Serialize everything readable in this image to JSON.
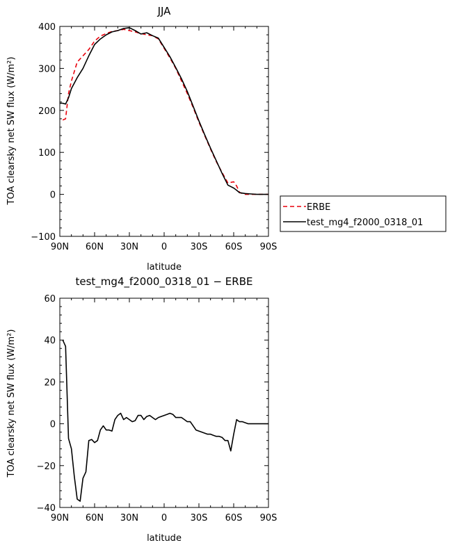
{
  "chart_data": [
    {
      "type": "line",
      "title": "JJA",
      "xlabel": "latitude",
      "ylabel": "TOA clearsky net SW flux (W/m²)",
      "xticks": [
        {
          "value": -90,
          "label": "90N"
        },
        {
          "value": -60,
          "label": "60N"
        },
        {
          "value": -30,
          "label": "30N"
        },
        {
          "value": 0,
          "label": "0"
        },
        {
          "value": 30,
          "label": "30S"
        },
        {
          "value": 60,
          "label": "60S"
        },
        {
          "value": 90,
          "label": "90S"
        }
      ],
      "yticks": [
        -100,
        0,
        100,
        200,
        300,
        400
      ],
      "ylim": [
        -100,
        400
      ],
      "legend": "right",
      "series": [
        {
          "name": "ERBE",
          "color": "#e8000b",
          "dash": "dashed",
          "x": [
            -87.5,
            -85,
            -82.5,
            -80,
            -75,
            -70,
            -65,
            -60,
            -55,
            -50,
            -45,
            -40,
            -35,
            -30,
            -25,
            -20,
            -15,
            -10,
            -5,
            0,
            5,
            10,
            15,
            20,
            25,
            30,
            35,
            40,
            45,
            50,
            55,
            60,
            62.5,
            65,
            67.5,
            70,
            75,
            80,
            85,
            90
          ],
          "y": [
            177,
            180,
            240,
            270,
            315,
            330,
            345,
            365,
            377,
            383,
            388,
            390,
            393,
            390,
            387,
            383,
            380,
            378,
            370,
            348,
            325,
            300,
            270,
            240,
            207,
            172,
            140,
            108,
            78,
            52,
            27,
            30,
            20,
            5,
            2,
            0,
            0,
            0,
            0,
            0
          ]
        },
        {
          "name": "test_mg4_f2000_0318_01",
          "color": "#000000",
          "dash": "solid",
          "x": [
            -90,
            -87.5,
            -85,
            -82.5,
            -80,
            -75,
            -70,
            -65,
            -60,
            -55,
            -50,
            -45,
            -40,
            -35,
            -30,
            -25,
            -20,
            -15,
            -10,
            -5,
            0,
            5,
            10,
            15,
            20,
            25,
            30,
            35,
            40,
            45,
            50,
            55,
            60,
            62.5,
            65,
            67.5,
            70,
            75,
            80,
            85,
            90
          ],
          "y": [
            217,
            217,
            215,
            230,
            252,
            278,
            300,
            330,
            357,
            370,
            380,
            387,
            390,
            395,
            397,
            390,
            382,
            385,
            378,
            372,
            350,
            328,
            302,
            275,
            245,
            210,
            175,
            142,
            110,
            80,
            50,
            22,
            15,
            10,
            4,
            3,
            2,
            1,
            0,
            0,
            0
          ]
        }
      ]
    },
    {
      "type": "line",
      "title": "test_mg4_f2000_0318_01 − ERBE",
      "xlabel": "latitude",
      "ylabel": "TOA clearsky net SW flux (W/m²)",
      "xticks": [
        {
          "value": -90,
          "label": "90N"
        },
        {
          "value": -60,
          "label": "60N"
        },
        {
          "value": -30,
          "label": "30N"
        },
        {
          "value": 0,
          "label": "0"
        },
        {
          "value": 30,
          "label": "30S"
        },
        {
          "value": 60,
          "label": "60S"
        },
        {
          "value": 90,
          "label": "90S"
        }
      ],
      "yticks": [
        -40,
        -20,
        0,
        20,
        40,
        60
      ],
      "ylim": [
        -40,
        60
      ],
      "series": [
        {
          "color": "#000000",
          "dash": "solid",
          "x": [
            -87.5,
            -85,
            -82.5,
            -80,
            -77.5,
            -75,
            -72.5,
            -70,
            -67.5,
            -65,
            -62.5,
            -60,
            -57.5,
            -55,
            -52.5,
            -50,
            -47.5,
            -45,
            -42.5,
            -40,
            -37.5,
            -35,
            -32.5,
            -30,
            -27.5,
            -25,
            -22.5,
            -20,
            -17.5,
            -15,
            -12.5,
            -10,
            -7.5,
            -5,
            -2.5,
            0,
            2.5,
            5,
            7.5,
            10,
            12.5,
            15,
            17.5,
            20,
            22.5,
            25,
            27.5,
            30,
            32.5,
            35,
            37.5,
            40,
            42.5,
            45,
            47.5,
            50,
            52.5,
            55,
            57.5,
            60,
            62.5,
            65,
            67.5,
            70,
            72.5,
            75,
            77.5,
            80,
            82.5,
            85,
            87.5,
            90
          ],
          "y": [
            40,
            37,
            -7,
            -12,
            -25,
            -36,
            -37,
            -26,
            -23,
            -8,
            -7.5,
            -9,
            -8,
            -3,
            -1,
            -3,
            -3,
            -3.5,
            2,
            4,
            5,
            2,
            3,
            2,
            1,
            1.5,
            4,
            4,
            2,
            3.5,
            4,
            3,
            2,
            3,
            3.5,
            4,
            4.5,
            5,
            4.5,
            3,
            3,
            3,
            2,
            1,
            1,
            -1,
            -3,
            -3.5,
            -4,
            -4.5,
            -5,
            -5,
            -5.5,
            -6,
            -6,
            -6.5,
            -8,
            -8,
            -13,
            -5,
            2,
            1,
            1,
            0.5,
            0,
            0,
            0,
            0,
            0,
            0,
            0,
            0
          ]
        }
      ]
    }
  ]
}
